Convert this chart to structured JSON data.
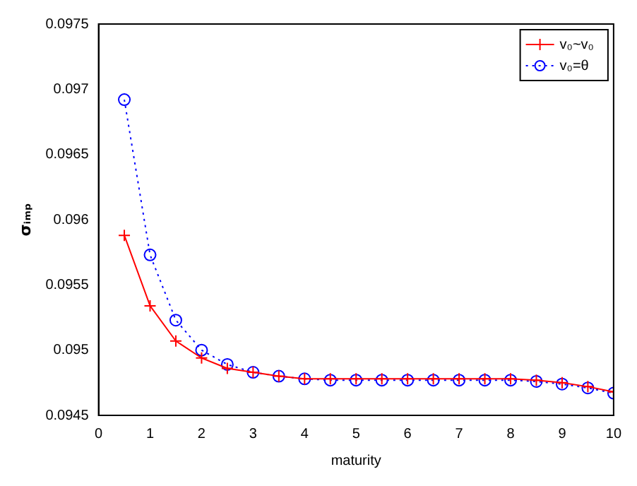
{
  "chart_data": {
    "type": "line",
    "xlabel": "maturity",
    "ylabel": "σᵢₘₚ",
    "x": [
      0.5,
      1,
      1.5,
      2,
      2.5,
      3,
      3.5,
      4,
      4.5,
      5,
      5.5,
      6,
      6.5,
      7,
      7.5,
      8,
      8.5,
      9,
      9.5,
      10
    ],
    "series": [
      {
        "name": "v₀~v₀",
        "color": "#ff0000",
        "marker": "cross",
        "line_style": "solid",
        "values": [
          0.09588,
          0.09534,
          0.09507,
          0.09494,
          0.09486,
          0.09483,
          0.0948,
          0.09478,
          0.09478,
          0.09478,
          0.09478,
          0.09478,
          0.09478,
          0.09478,
          0.09478,
          0.09478,
          0.09477,
          0.09475,
          0.09472,
          0.09468
        ]
      },
      {
        "name": "v₀=θ",
        "color": "#0000ff",
        "marker": "circle",
        "line_style": "dotted",
        "values": [
          0.09692,
          0.09573,
          0.09523,
          0.095,
          0.09489,
          0.09483,
          0.0948,
          0.09478,
          0.09477,
          0.09477,
          0.09477,
          0.09477,
          0.09477,
          0.09477,
          0.09477,
          0.09477,
          0.09476,
          0.09474,
          0.09471,
          0.09467
        ]
      }
    ],
    "xlim": [
      0,
      10
    ],
    "xticks": [
      0,
      1,
      2,
      3,
      4,
      5,
      6,
      7,
      8,
      9,
      10
    ],
    "ylim": [
      0.0945,
      0.0975
    ],
    "yticks": [
      0.0945,
      0.095,
      0.0955,
      0.096,
      0.0965,
      0.097,
      0.0975
    ],
    "grid": false,
    "legend": "top right"
  }
}
